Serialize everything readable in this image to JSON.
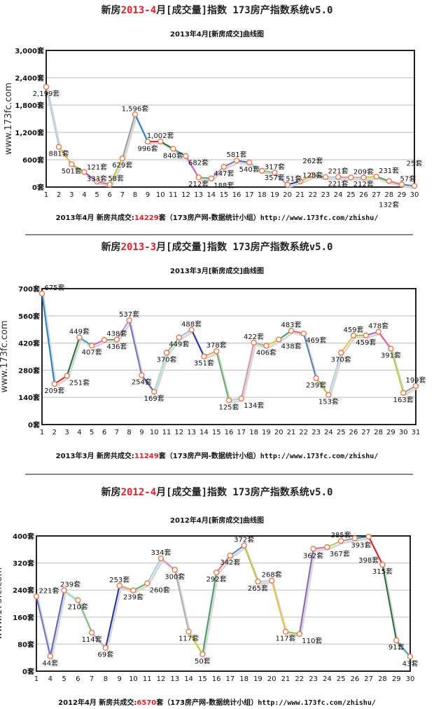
{
  "unit": "套",
  "palette": [
    "#b7cde0",
    "#e8c040",
    "#9ac030",
    "#9060c0",
    "#e060a0",
    "#b0d040",
    "#999999",
    "#2080c0",
    "#e02020",
    "#207030",
    "#40a0c0",
    "#d060d0",
    "#60a060",
    "#c090d0",
    "#7070d0",
    "#6060c0",
    "#a0e0c0",
    "#80c080",
    "#b0b0e0",
    "#2030a0",
    "#f0a040",
    "#60b060",
    "#a0d0e0",
    "#e090b0",
    "#b0b0b0",
    "#d0d020",
    "#40a060",
    "#e07070",
    "#5080c0",
    "#c0c040"
  ],
  "point_stroke": "#f07040",
  "chart_data": [
    {
      "type": "line",
      "header": {
        "prefix": "新房",
        "period": "2013-4",
        "suffix": "月[成交量]指数 173房产指数系统v5.0"
      },
      "title": "2013年4月[新房成交]曲线图",
      "ylabel": "www.173fc.com",
      "ylim": [
        0,
        3000
      ],
      "yticks": [
        0,
        600,
        1200,
        1800,
        2400,
        3000
      ],
      "comma": true,
      "categories": [
        "1",
        "2",
        "3",
        "4",
        "5",
        "6",
        "7",
        "8",
        "9",
        "10",
        "11",
        "12",
        "13",
        "14",
        "15",
        "16",
        "17",
        "18",
        "19",
        "20",
        "21",
        "22",
        "23",
        "24",
        "25",
        "26",
        "27",
        "28",
        "29",
        "30"
      ],
      "values": [
        2199,
        881,
        501,
        333,
        121,
        58,
        629,
        1596,
        996,
        1002,
        840,
        682,
        212,
        188,
        447,
        581,
        540,
        357,
        317,
        51,
        128,
        262,
        221,
        221,
        212,
        209,
        231,
        132,
        57,
        25
      ],
      "footer": {
        "period": "2013年4月",
        "label": "新房共成交:",
        "total": "14229",
        "suffix": "套（173房产网-数据统计小组）",
        "url": "http://www.173fc.com/zhishu/"
      }
    },
    {
      "type": "line",
      "header": {
        "prefix": "新房",
        "period": "2013-3",
        "suffix": "月[成交量]指数 173房产指数系统v5.0"
      },
      "title": "2013年3月[新房成交]曲线图",
      "ylabel": "www.173fc.com",
      "ylim": [
        0,
        700
      ],
      "yticks": [
        0,
        140,
        280,
        420,
        560,
        700
      ],
      "comma": false,
      "categories": [
        "1",
        "2",
        "3",
        "4",
        "5",
        "6",
        "7",
        "8",
        "9",
        "10",
        "11",
        "12",
        "13",
        "14",
        "15",
        "16",
        "17",
        "18",
        "19",
        "20",
        "21",
        "22",
        "23",
        "24",
        "25",
        "26",
        "27",
        "28",
        "29",
        "30",
        "31"
      ],
      "values": [
        675,
        209,
        251,
        449,
        407,
        436,
        438,
        537,
        254,
        169,
        370,
        449,
        488,
        351,
        378,
        125,
        134,
        422,
        406,
        438,
        483,
        469,
        239,
        153,
        370,
        459,
        459,
        478,
        391,
        163,
        199
      ],
      "footer": {
        "period": "2013年3月",
        "label": "新房共成交:",
        "total": "11249",
        "suffix": "套（173房产网-数据统计小组）",
        "url": "http://www.173fc.com/zhishu/"
      }
    },
    {
      "type": "line",
      "header": {
        "prefix": "新房",
        "period": "2012-4",
        "suffix": "月[成交量]指数 173房产指数系统v5.0"
      },
      "title": "2012年4月[新房成交]曲线图",
      "ylabel": "www.173fc.com",
      "ylim": [
        0,
        400
      ],
      "yticks": [
        0,
        80,
        160,
        240,
        320,
        400
      ],
      "comma": false,
      "categories": [
        "1",
        "4",
        "5",
        "6",
        "7",
        "8",
        "9",
        "10",
        "11",
        "12",
        "13",
        "14",
        "15",
        "16",
        "17",
        "18",
        "19",
        "20",
        "21",
        "22",
        "23",
        "24",
        "25",
        "26",
        "27",
        "28",
        "29",
        "30"
      ],
      "values": [
        221,
        44,
        239,
        210,
        114,
        69,
        253,
        239,
        260,
        334,
        300,
        117,
        50,
        292,
        342,
        372,
        265,
        268,
        117,
        110,
        362,
        367,
        385,
        393,
        398,
        315,
        91,
        43
      ],
      "footer": {
        "period": "2012年4月",
        "label": "新房共成交:",
        "total": "6570",
        "suffix": "套（173房产网-数据统计小组）",
        "url": "http://www.173fc.com/zhishu/"
      }
    }
  ]
}
